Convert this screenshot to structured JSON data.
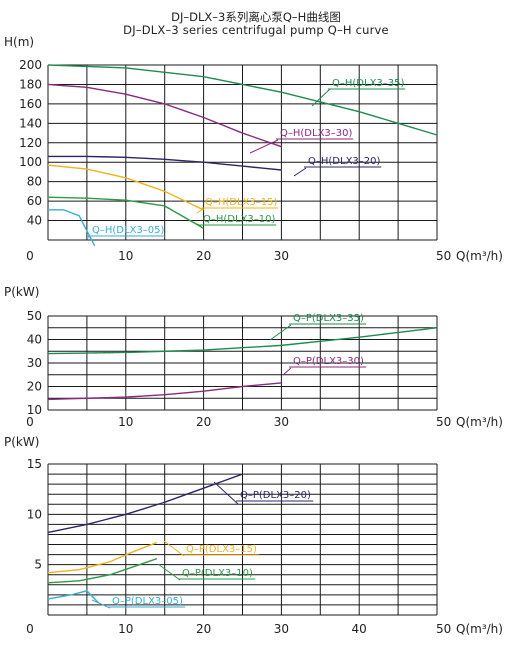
{
  "header": {
    "title_cn": "DJ–DLX–3系列离心泵Q–H曲线图",
    "title_en": "DJ–DLX–3 series centrifugal pump Q–H curve"
  },
  "colors": {
    "grid": "#1a1a1a",
    "dlx3_35": "#1e8c4e",
    "dlx3_30": "#8a2a7e",
    "dlx3_20": "#2b2766",
    "dlx3_15": "#f0b21e",
    "dlx3_10": "#2e9a46",
    "dlx3_05": "#3aaed0"
  },
  "chart_data": [
    {
      "type": "line",
      "ylabel": "H(m)",
      "xlabel": "Q(m³/h)",
      "xlim": [
        0,
        50
      ],
      "ylim": [
        20,
        200
      ],
      "x_ticks": [
        "0",
        "10",
        "20",
        "30",
        "50"
      ],
      "y_ticks": [
        "40",
        "60",
        "80",
        "100",
        "120",
        "140",
        "160",
        "180",
        "200"
      ],
      "grid": true,
      "series": [
        {
          "name": "Q–H(DLX3–35)",
          "color_key": "dlx3_35",
          "x": [
            0,
            10,
            20,
            30,
            40,
            50
          ],
          "y": [
            200,
            197,
            188,
            172,
            152,
            128
          ]
        },
        {
          "name": "Q–H(DLX3–30)",
          "color_key": "dlx3_30",
          "x": [
            0,
            5,
            10,
            15,
            20,
            25,
            30
          ],
          "y": [
            180,
            177,
            170,
            160,
            146,
            130,
            116
          ]
        },
        {
          "name": "Q–H(DLX3–20)",
          "color_key": "dlx3_20",
          "x": [
            0,
            5,
            10,
            15,
            20,
            25,
            30
          ],
          "y": [
            106,
            106,
            105,
            103,
            100,
            96,
            92
          ]
        },
        {
          "name": "Q–H(DLX3–15)",
          "color_key": "dlx3_15",
          "x": [
            0,
            5,
            10,
            15,
            20
          ],
          "y": [
            97,
            93,
            84,
            70,
            51
          ]
        },
        {
          "name": "Q–H(DLX3–10)",
          "color_key": "dlx3_10",
          "x": [
            0,
            5,
            10,
            15,
            20
          ],
          "y": [
            64,
            63,
            61,
            55,
            32
          ]
        },
        {
          "name": "Q–H(DLX3–05)",
          "color_key": "dlx3_05",
          "x": [
            0,
            2,
            4,
            6
          ],
          "y": [
            51,
            51,
            45,
            14
          ]
        }
      ]
    },
    {
      "type": "line",
      "ylabel": "P(kW)",
      "xlabel": "Q(m³/h)",
      "xlim": [
        0,
        50
      ],
      "ylim": [
        10,
        50
      ],
      "x_ticks": [
        "0",
        "10",
        "20",
        "30",
        "50"
      ],
      "y_ticks": [
        "10",
        "20",
        "30",
        "40",
        "50"
      ],
      "grid": true,
      "series": [
        {
          "name": "Q–P(DLX3–35)",
          "color_key": "dlx3_35",
          "x": [
            0,
            10,
            20,
            30,
            40,
            50
          ],
          "y": [
            34,
            34.5,
            35.5,
            37.5,
            41,
            45
          ]
        },
        {
          "name": "Q–P(DLX3–30)",
          "color_key": "dlx3_30",
          "x": [
            0,
            5,
            10,
            15,
            20,
            25,
            30
          ],
          "y": [
            14.5,
            15,
            15.5,
            16.5,
            18,
            20,
            21.5
          ]
        }
      ]
    },
    {
      "type": "line",
      "ylabel": "P(kW)",
      "xlabel": "Q(m³/h)",
      "xlim": [
        0,
        50
      ],
      "ylim": [
        0,
        15
      ],
      "x_ticks": [
        "0",
        "10",
        "20",
        "30",
        "40",
        "50"
      ],
      "y_ticks": [
        "5",
        "10",
        "15"
      ],
      "grid": true,
      "series": [
        {
          "name": "Q–P(DLX3–20)",
          "color_key": "dlx3_20",
          "x": [
            0,
            5,
            10,
            15,
            20,
            25
          ],
          "y": [
            8.2,
            9,
            10,
            11.2,
            12.6,
            14
          ]
        },
        {
          "name": "Q–P(DLX3–15)",
          "color_key": "dlx3_15",
          "x": [
            0,
            4,
            8,
            11,
            14
          ],
          "y": [
            4.2,
            4.5,
            5.3,
            6.3,
            7.2
          ]
        },
        {
          "name": "Q–P(DLX3–10)",
          "color_key": "dlx3_10",
          "x": [
            0,
            4,
            8,
            11,
            14
          ],
          "y": [
            3.2,
            3.4,
            4,
            4.8,
            5.6
          ]
        },
        {
          "name": "Q–P(DLX3–05)",
          "color_key": "dlx3_05",
          "x": [
            0,
            3,
            5,
            6.5
          ],
          "y": [
            1.6,
            2.0,
            2.4,
            1.2
          ]
        }
      ]
    }
  ]
}
